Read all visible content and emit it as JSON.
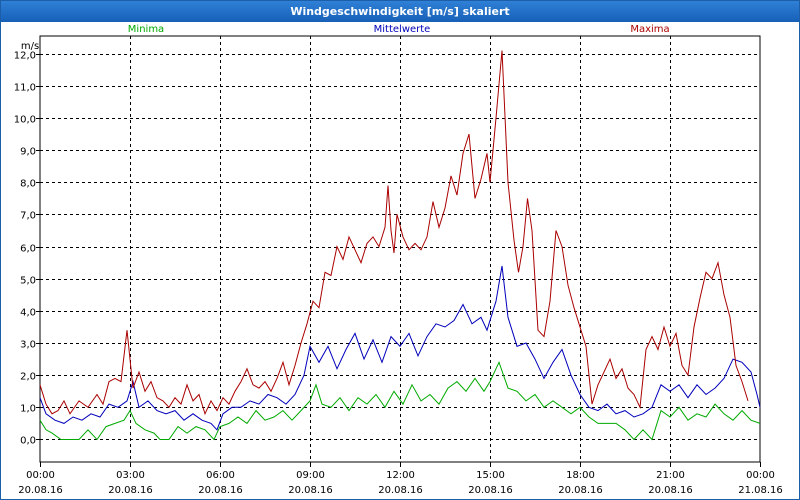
{
  "window": {
    "title": "Windgeschwindigkeit [m/s] skaliert"
  },
  "chart_data": {
    "type": "line",
    "title": "Windgeschwindigkeit [m/s] skaliert",
    "ylabel": "m/s",
    "xlabel": "",
    "ylim": [
      -0.7,
      12.55
    ],
    "xlim": [
      0,
      24
    ],
    "grid": true,
    "y_ticks": [
      "0,0",
      "1,0",
      "2,0",
      "3,0",
      "4,0",
      "5,0",
      "6,0",
      "7,0",
      "8,0",
      "9,0",
      "10,0",
      "11,0",
      "12,0"
    ],
    "x_ticks": [
      {
        "time": "00:00",
        "date": "20.08.16"
      },
      {
        "time": "03:00",
        "date": "20.08.16"
      },
      {
        "time": "06:00",
        "date": "20.08.16"
      },
      {
        "time": "09:00",
        "date": "20.08.16"
      },
      {
        "time": "12:00",
        "date": "20.08.16"
      },
      {
        "time": "15:00",
        "date": "20.08.16"
      },
      {
        "time": "18:00",
        "date": "20.08.16"
      },
      {
        "time": "21:00",
        "date": "20.08.16"
      },
      {
        "time": "00:00",
        "date": "21.08.16"
      }
    ],
    "series": [
      {
        "name": "Minima",
        "color": "#00aa00",
        "points": [
          [
            0.0,
            0.6
          ],
          [
            0.2,
            0.3
          ],
          [
            0.4,
            0.2
          ],
          [
            0.7,
            0.0
          ],
          [
            1.0,
            0.0
          ],
          [
            1.3,
            0.0
          ],
          [
            1.6,
            0.3
          ],
          [
            1.9,
            0.0
          ],
          [
            2.2,
            0.4
          ],
          [
            2.5,
            0.5
          ],
          [
            2.8,
            0.6
          ],
          [
            3.0,
            0.9
          ],
          [
            3.2,
            0.5
          ],
          [
            3.5,
            0.3
          ],
          [
            3.8,
            0.2
          ],
          [
            4.0,
            0.0
          ],
          [
            4.3,
            0.0
          ],
          [
            4.6,
            0.4
          ],
          [
            4.9,
            0.2
          ],
          [
            5.2,
            0.4
          ],
          [
            5.5,
            0.3
          ],
          [
            5.8,
            0.0
          ],
          [
            6.0,
            0.4
          ],
          [
            6.3,
            0.5
          ],
          [
            6.6,
            0.7
          ],
          [
            6.9,
            0.5
          ],
          [
            7.2,
            0.9
          ],
          [
            7.5,
            0.6
          ],
          [
            7.8,
            0.7
          ],
          [
            8.1,
            0.9
          ],
          [
            8.4,
            0.6
          ],
          [
            8.7,
            0.9
          ],
          [
            9.0,
            1.2
          ],
          [
            9.2,
            1.7
          ],
          [
            9.4,
            1.1
          ],
          [
            9.7,
            1.0
          ],
          [
            10.0,
            1.3
          ],
          [
            10.3,
            0.9
          ],
          [
            10.6,
            1.3
          ],
          [
            10.9,
            1.1
          ],
          [
            11.2,
            1.4
          ],
          [
            11.5,
            1.0
          ],
          [
            11.8,
            1.5
          ],
          [
            12.1,
            1.1
          ],
          [
            12.4,
            1.7
          ],
          [
            12.7,
            1.2
          ],
          [
            13.0,
            1.4
          ],
          [
            13.3,
            1.1
          ],
          [
            13.6,
            1.6
          ],
          [
            13.9,
            1.8
          ],
          [
            14.2,
            1.5
          ],
          [
            14.5,
            1.9
          ],
          [
            14.8,
            1.5
          ],
          [
            15.0,
            1.8
          ],
          [
            15.3,
            2.4
          ],
          [
            15.6,
            1.6
          ],
          [
            15.9,
            1.5
          ],
          [
            16.2,
            1.2
          ],
          [
            16.5,
            1.4
          ],
          [
            16.8,
            1.0
          ],
          [
            17.1,
            1.2
          ],
          [
            17.4,
            1.0
          ],
          [
            17.7,
            0.8
          ],
          [
            18.0,
            1.0
          ],
          [
            18.3,
            0.7
          ],
          [
            18.6,
            0.5
          ],
          [
            18.9,
            0.5
          ],
          [
            19.2,
            0.5
          ],
          [
            19.5,
            0.3
          ],
          [
            19.8,
            0.0
          ],
          [
            20.1,
            0.3
          ],
          [
            20.4,
            0.0
          ],
          [
            20.7,
            0.9
          ],
          [
            21.0,
            0.7
          ],
          [
            21.3,
            1.0
          ],
          [
            21.6,
            0.6
          ],
          [
            21.9,
            0.8
          ],
          [
            22.2,
            0.7
          ],
          [
            22.5,
            1.1
          ],
          [
            22.8,
            0.8
          ],
          [
            23.1,
            0.6
          ],
          [
            23.4,
            0.9
          ],
          [
            23.7,
            0.6
          ],
          [
            24.0,
            0.5
          ]
        ]
      },
      {
        "name": "Mittelwerte",
        "color": "#0000bb",
        "points": [
          [
            0.0,
            1.3
          ],
          [
            0.2,
            0.8
          ],
          [
            0.5,
            0.6
          ],
          [
            0.8,
            0.5
          ],
          [
            1.1,
            0.7
          ],
          [
            1.4,
            0.6
          ],
          [
            1.7,
            0.8
          ],
          [
            2.0,
            0.7
          ],
          [
            2.3,
            1.1
          ],
          [
            2.6,
            1.0
          ],
          [
            2.9,
            1.2
          ],
          [
            3.1,
            1.8
          ],
          [
            3.3,
            1.0
          ],
          [
            3.6,
            1.2
          ],
          [
            3.9,
            0.9
          ],
          [
            4.2,
            0.8
          ],
          [
            4.5,
            0.9
          ],
          [
            4.8,
            0.6
          ],
          [
            5.1,
            0.8
          ],
          [
            5.4,
            0.6
          ],
          [
            5.7,
            0.5
          ],
          [
            5.9,
            0.3
          ],
          [
            6.1,
            0.8
          ],
          [
            6.4,
            1.0
          ],
          [
            6.7,
            1.0
          ],
          [
            7.0,
            1.2
          ],
          [
            7.3,
            1.1
          ],
          [
            7.6,
            1.4
          ],
          [
            7.9,
            1.3
          ],
          [
            8.2,
            1.1
          ],
          [
            8.5,
            1.4
          ],
          [
            8.8,
            2.0
          ],
          [
            9.0,
            2.9
          ],
          [
            9.3,
            2.4
          ],
          [
            9.6,
            2.9
          ],
          [
            9.9,
            2.2
          ],
          [
            10.2,
            2.8
          ],
          [
            10.5,
            3.3
          ],
          [
            10.8,
            2.5
          ],
          [
            11.1,
            3.1
          ],
          [
            11.4,
            2.4
          ],
          [
            11.7,
            3.2
          ],
          [
            12.0,
            2.9
          ],
          [
            12.3,
            3.3
          ],
          [
            12.6,
            2.6
          ],
          [
            12.9,
            3.2
          ],
          [
            13.2,
            3.6
          ],
          [
            13.5,
            3.5
          ],
          [
            13.8,
            3.7
          ],
          [
            14.1,
            4.2
          ],
          [
            14.4,
            3.6
          ],
          [
            14.7,
            3.8
          ],
          [
            14.9,
            3.4
          ],
          [
            15.2,
            4.3
          ],
          [
            15.4,
            5.4
          ],
          [
            15.6,
            3.8
          ],
          [
            15.9,
            2.9
          ],
          [
            16.2,
            3.0
          ],
          [
            16.5,
            2.5
          ],
          [
            16.8,
            1.9
          ],
          [
            17.1,
            2.4
          ],
          [
            17.4,
            2.8
          ],
          [
            17.7,
            2.0
          ],
          [
            18.0,
            1.4
          ],
          [
            18.3,
            1.0
          ],
          [
            18.6,
            0.9
          ],
          [
            18.9,
            1.1
          ],
          [
            19.2,
            0.8
          ],
          [
            19.5,
            0.9
          ],
          [
            19.8,
            0.7
          ],
          [
            20.1,
            0.8
          ],
          [
            20.4,
            1.0
          ],
          [
            20.7,
            1.7
          ],
          [
            21.0,
            1.5
          ],
          [
            21.3,
            1.7
          ],
          [
            21.6,
            1.3
          ],
          [
            21.9,
            1.7
          ],
          [
            22.2,
            1.4
          ],
          [
            22.5,
            1.6
          ],
          [
            22.8,
            1.9
          ],
          [
            23.1,
            2.5
          ],
          [
            23.4,
            2.4
          ],
          [
            23.7,
            2.1
          ],
          [
            23.9,
            1.4
          ],
          [
            24.0,
            1.0
          ]
        ]
      },
      {
        "name": "Maxima",
        "color": "#aa0000",
        "points": [
          [
            0.0,
            1.7
          ],
          [
            0.2,
            1.1
          ],
          [
            0.4,
            0.8
          ],
          [
            0.6,
            0.9
          ],
          [
            0.8,
            1.2
          ],
          [
            1.0,
            0.8
          ],
          [
            1.3,
            1.2
          ],
          [
            1.6,
            1.0
          ],
          [
            1.9,
            1.4
          ],
          [
            2.1,
            1.1
          ],
          [
            2.3,
            1.8
          ],
          [
            2.5,
            1.9
          ],
          [
            2.7,
            1.8
          ],
          [
            2.9,
            3.4
          ],
          [
            3.1,
            1.6
          ],
          [
            3.3,
            2.1
          ],
          [
            3.5,
            1.5
          ],
          [
            3.7,
            1.8
          ],
          [
            3.9,
            1.3
          ],
          [
            4.1,
            1.2
          ],
          [
            4.3,
            1.0
          ],
          [
            4.5,
            1.3
          ],
          [
            4.7,
            1.1
          ],
          [
            4.9,
            1.7
          ],
          [
            5.1,
            1.2
          ],
          [
            5.3,
            1.4
          ],
          [
            5.5,
            0.8
          ],
          [
            5.7,
            1.2
          ],
          [
            5.9,
            0.9
          ],
          [
            6.1,
            1.3
          ],
          [
            6.3,
            1.1
          ],
          [
            6.5,
            1.5
          ],
          [
            6.7,
            1.8
          ],
          [
            6.9,
            2.2
          ],
          [
            7.1,
            1.7
          ],
          [
            7.3,
            1.6
          ],
          [
            7.5,
            1.8
          ],
          [
            7.7,
            1.5
          ],
          [
            7.9,
            1.9
          ],
          [
            8.1,
            2.4
          ],
          [
            8.3,
            1.7
          ],
          [
            8.5,
            2.3
          ],
          [
            8.7,
            3.0
          ],
          [
            8.9,
            3.6
          ],
          [
            9.1,
            4.3
          ],
          [
            9.3,
            4.1
          ],
          [
            9.5,
            5.2
          ],
          [
            9.7,
            5.1
          ],
          [
            9.9,
            6.0
          ],
          [
            10.1,
            5.6
          ],
          [
            10.3,
            6.3
          ],
          [
            10.5,
            5.9
          ],
          [
            10.7,
            5.5
          ],
          [
            10.9,
            6.1
          ],
          [
            11.1,
            6.3
          ],
          [
            11.3,
            6.0
          ],
          [
            11.5,
            6.6
          ],
          [
            11.6,
            7.9
          ],
          [
            11.7,
            6.5
          ],
          [
            11.8,
            5.8
          ],
          [
            11.9,
            7.0
          ],
          [
            12.1,
            6.3
          ],
          [
            12.3,
            5.9
          ],
          [
            12.5,
            6.1
          ],
          [
            12.7,
            5.9
          ],
          [
            12.9,
            6.3
          ],
          [
            13.1,
            7.4
          ],
          [
            13.3,
            6.6
          ],
          [
            13.5,
            7.2
          ],
          [
            13.7,
            8.2
          ],
          [
            13.9,
            7.6
          ],
          [
            14.1,
            8.9
          ],
          [
            14.3,
            9.5
          ],
          [
            14.5,
            7.5
          ],
          [
            14.7,
            8.1
          ],
          [
            14.9,
            8.9
          ],
          [
            15.0,
            8.0
          ],
          [
            15.2,
            10.0
          ],
          [
            15.4,
            12.1
          ],
          [
            15.6,
            8.0
          ],
          [
            15.8,
            6.2
          ],
          [
            15.95,
            5.2
          ],
          [
            16.1,
            6.0
          ],
          [
            16.25,
            7.5
          ],
          [
            16.4,
            6.5
          ],
          [
            16.6,
            3.4
          ],
          [
            16.8,
            3.2
          ],
          [
            17.0,
            4.3
          ],
          [
            17.2,
            6.5
          ],
          [
            17.4,
            6.0
          ],
          [
            17.6,
            4.8
          ],
          [
            17.8,
            4.1
          ],
          [
            18.0,
            3.5
          ],
          [
            18.2,
            2.9
          ],
          [
            18.4,
            1.1
          ],
          [
            18.6,
            1.7
          ],
          [
            18.8,
            2.1
          ],
          [
            19.0,
            2.5
          ],
          [
            19.2,
            1.9
          ],
          [
            19.4,
            2.2
          ],
          [
            19.6,
            1.6
          ],
          [
            19.8,
            1.4
          ],
          [
            20.0,
            1.0
          ],
          [
            20.2,
            2.8
          ],
          [
            20.4,
            3.2
          ],
          [
            20.6,
            2.8
          ],
          [
            20.8,
            3.5
          ],
          [
            21.0,
            2.9
          ],
          [
            21.2,
            3.3
          ],
          [
            21.4,
            2.3
          ],
          [
            21.6,
            2.0
          ],
          [
            21.8,
            3.5
          ],
          [
            22.0,
            4.4
          ],
          [
            22.2,
            5.2
          ],
          [
            22.4,
            5.0
          ],
          [
            22.6,
            5.5
          ],
          [
            22.8,
            4.5
          ],
          [
            23.0,
            3.8
          ],
          [
            23.2,
            2.3
          ],
          [
            23.4,
            1.8
          ],
          [
            23.6,
            1.2
          ]
        ]
      }
    ]
  }
}
